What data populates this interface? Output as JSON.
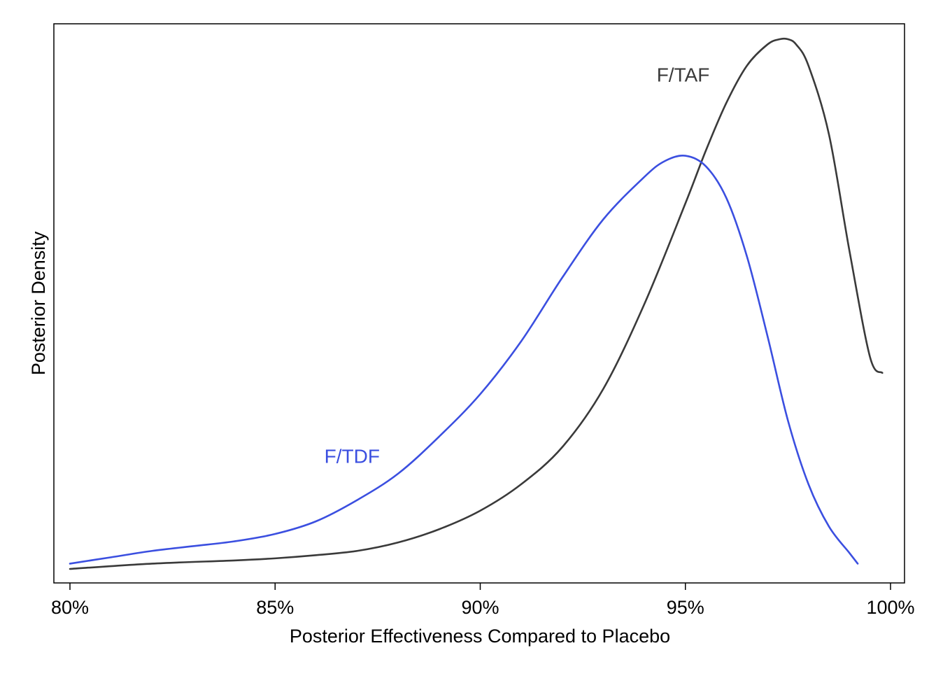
{
  "chart_data": {
    "type": "line",
    "title": "",
    "xlabel": "Posterior Effectiveness Compared to Placebo",
    "ylabel": "Posterior Density",
    "xlim": [
      80,
      100
    ],
    "ylim": [
      0,
      1.0
    ],
    "x_ticks": [
      80,
      85,
      90,
      95,
      100
    ],
    "x_tick_labels": [
      "80%",
      "85%",
      "90%",
      "95%",
      "100%"
    ],
    "y_ticks": [],
    "grid": false,
    "legend": "none",
    "series": [
      {
        "name": "F/TAF",
        "color": "#3a3a3a",
        "label_at": [
          94.3,
          0.92
        ],
        "x": [
          80.0,
          82.0,
          84.0,
          85.0,
          86.0,
          87.0,
          88.0,
          89.0,
          90.0,
          91.0,
          92.0,
          93.0,
          94.0,
          95.0,
          95.5,
          96.0,
          96.5,
          97.0,
          97.3,
          97.5,
          97.7,
          98.0,
          98.5,
          99.0,
          99.5,
          99.8
        ],
        "y": [
          0.0,
          0.01,
          0.016,
          0.02,
          0.026,
          0.034,
          0.05,
          0.075,
          0.11,
          0.16,
          0.23,
          0.34,
          0.5,
          0.69,
          0.79,
          0.88,
          0.95,
          0.99,
          1.0,
          1.0,
          0.99,
          0.95,
          0.82,
          0.6,
          0.4,
          0.37
        ]
      },
      {
        "name": "F/TDF",
        "color": "#3b4fe0",
        "label_at": [
          86.2,
          0.2
        ],
        "x": [
          80.0,
          81.0,
          82.0,
          83.0,
          84.0,
          85.0,
          86.0,
          87.0,
          88.0,
          89.0,
          90.0,
          91.0,
          92.0,
          93.0,
          94.0,
          94.5,
          95.0,
          95.5,
          96.0,
          96.5,
          97.0,
          97.5,
          98.0,
          98.5,
          99.0,
          99.2
        ],
        "y": [
          0.01,
          0.022,
          0.034,
          0.043,
          0.052,
          0.066,
          0.09,
          0.13,
          0.18,
          0.25,
          0.33,
          0.43,
          0.55,
          0.66,
          0.74,
          0.77,
          0.78,
          0.76,
          0.7,
          0.59,
          0.44,
          0.28,
          0.16,
          0.08,
          0.03,
          0.01
        ]
      }
    ]
  }
}
